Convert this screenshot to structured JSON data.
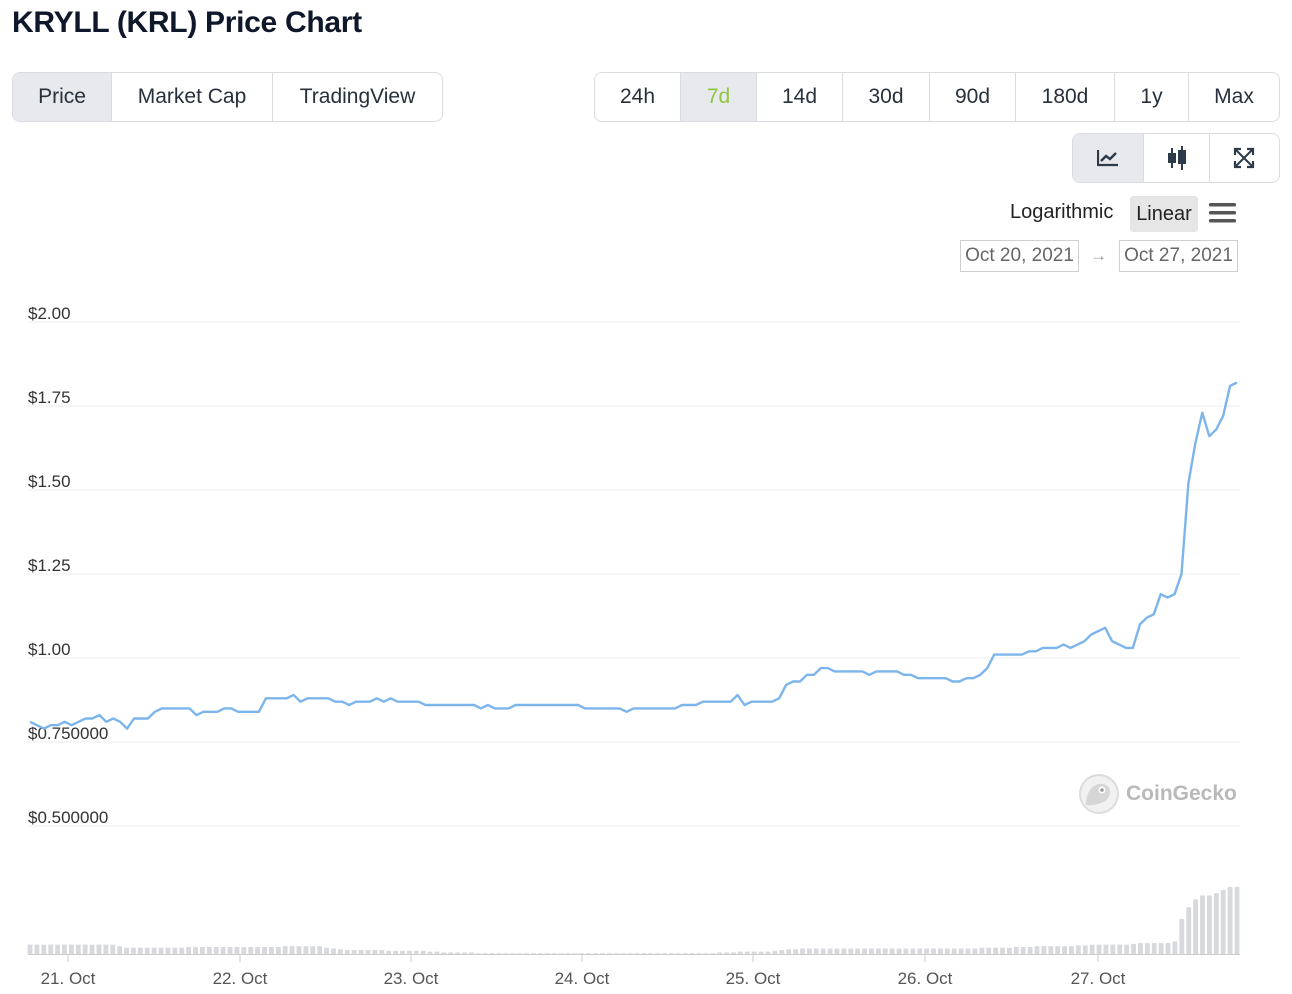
{
  "title": "KRYLL (KRL) Price Chart",
  "tabs": [
    {
      "label": "Price",
      "active": true
    },
    {
      "label": "Market Cap",
      "active": false
    },
    {
      "label": "TradingView",
      "active": false
    }
  ],
  "ranges": [
    {
      "label": "24h",
      "active": false
    },
    {
      "label": "7d",
      "active": true
    },
    {
      "label": "14d",
      "active": false
    },
    {
      "label": "30d",
      "active": false
    },
    {
      "label": "90d",
      "active": false
    },
    {
      "label": "180d",
      "active": false
    },
    {
      "label": "1y",
      "active": false
    },
    {
      "label": "Max",
      "active": false
    }
  ],
  "chart_types": [
    {
      "icon": "line-chart-icon",
      "active": true
    },
    {
      "icon": "candlestick-icon",
      "active": false
    },
    {
      "icon": "expand-icon",
      "active": false
    }
  ],
  "scale": {
    "log_label": "Logarithmic",
    "linear_label": "Linear",
    "selected": "Linear"
  },
  "date_range": {
    "from": "Oct 20, 2021",
    "arrow": "→",
    "to": "Oct 27, 2021"
  },
  "watermark": "CoinGecko",
  "colors": {
    "line": "#7cb5ec",
    "volume": "#d7d9dc",
    "active_range": "#8dc63f",
    "grid": "#ececec"
  },
  "chart_data": {
    "type": "line",
    "series": [
      {
        "values": [
          0.81,
          0.8,
          0.79,
          0.8,
          0.8,
          0.81,
          0.8,
          0.81,
          0.82,
          0.82,
          0.83,
          0.81,
          0.82,
          0.81,
          0.79,
          0.82,
          0.82,
          0.82,
          0.84,
          0.85,
          0.85,
          0.85,
          0.85,
          0.85,
          0.83,
          0.84,
          0.84,
          0.84,
          0.85,
          0.85,
          0.84,
          0.84,
          0.84,
          0.84,
          0.88,
          0.88,
          0.88,
          0.88,
          0.89,
          0.87,
          0.88,
          0.88,
          0.88,
          0.88,
          0.87,
          0.87,
          0.86,
          0.87,
          0.87,
          0.87,
          0.88,
          0.87,
          0.88,
          0.87,
          0.87,
          0.87,
          0.87,
          0.86,
          0.86,
          0.86,
          0.86,
          0.86,
          0.86,
          0.86,
          0.86,
          0.85,
          0.86,
          0.85,
          0.85,
          0.85,
          0.86,
          0.86,
          0.86,
          0.86,
          0.86,
          0.86,
          0.86,
          0.86,
          0.86,
          0.86,
          0.85,
          0.85,
          0.85,
          0.85,
          0.85,
          0.85,
          0.84,
          0.85,
          0.85,
          0.85,
          0.85,
          0.85,
          0.85,
          0.85,
          0.86,
          0.86,
          0.86,
          0.87,
          0.87,
          0.87,
          0.87,
          0.87,
          0.89,
          0.86,
          0.87,
          0.87,
          0.87,
          0.87,
          0.88,
          0.92,
          0.93,
          0.93,
          0.95,
          0.95,
          0.97,
          0.97,
          0.96,
          0.96,
          0.96,
          0.96,
          0.96,
          0.95,
          0.96,
          0.96,
          0.96,
          0.96,
          0.95,
          0.95,
          0.94,
          0.94,
          0.94,
          0.94,
          0.94,
          0.93,
          0.93,
          0.94,
          0.94,
          0.95,
          0.97,
          1.01,
          1.01,
          1.01,
          1.01,
          1.01,
          1.02,
          1.02,
          1.03,
          1.03,
          1.03,
          1.04,
          1.03,
          1.04,
          1.05,
          1.07,
          1.08,
          1.09,
          1.05,
          1.04,
          1.03,
          1.03,
          1.1,
          1.12,
          1.13,
          1.19,
          1.18,
          1.19,
          1.25,
          1.52,
          1.64,
          1.73,
          1.66,
          1.68,
          1.72,
          1.81,
          1.82
        ]
      }
    ],
    "volume": [
      0.12,
      0.12,
      0.12,
      0.12,
      0.12,
      0.12,
      0.12,
      0.12,
      0.12,
      0.12,
      0.12,
      0.12,
      0.12,
      0.1,
      0.08,
      0.08,
      0.08,
      0.08,
      0.08,
      0.08,
      0.08,
      0.08,
      0.08,
      0.09,
      0.09,
      0.09,
      0.09,
      0.09,
      0.09,
      0.09,
      0.09,
      0.09,
      0.09,
      0.09,
      0.09,
      0.09,
      0.09,
      0.1,
      0.1,
      0.1,
      0.1,
      0.1,
      0.1,
      0.08,
      0.07,
      0.06,
      0.05,
      0.05,
      0.05,
      0.05,
      0.05,
      0.05,
      0.04,
      0.04,
      0.04,
      0.04,
      0.04,
      0.04,
      0.03,
      0.03,
      0.02,
      0.02,
      0.02,
      0.02,
      0.02,
      0.01,
      0.01,
      0.01,
      0.01,
      0.01,
      0.01,
      0.01,
      0.01,
      0.01,
      0.01,
      0.01,
      0.01,
      0.01,
      0.01,
      0.01,
      0.01,
      0.01,
      0.01,
      0.01,
      0.01,
      0.01,
      0.01,
      0.01,
      0.01,
      0.01,
      0.01,
      0.01,
      0.01,
      0.01,
      0.01,
      0.01,
      0.01,
      0.01,
      0.01,
      0.01,
      0.02,
      0.02,
      0.02,
      0.03,
      0.03,
      0.03,
      0.03,
      0.03,
      0.04,
      0.05,
      0.06,
      0.06,
      0.07,
      0.07,
      0.07,
      0.07,
      0.07,
      0.07,
      0.07,
      0.07,
      0.07,
      0.07,
      0.07,
      0.07,
      0.07,
      0.07,
      0.07,
      0.07,
      0.07,
      0.07,
      0.07,
      0.07,
      0.07,
      0.07,
      0.07,
      0.07,
      0.07,
      0.07,
      0.08,
      0.08,
      0.08,
      0.08,
      0.08,
      0.09,
      0.09,
      0.09,
      0.1,
      0.1,
      0.1,
      0.1,
      0.1,
      0.1,
      0.11,
      0.11,
      0.12,
      0.12,
      0.12,
      0.12,
      0.12,
      0.12,
      0.13,
      0.14,
      0.14,
      0.14,
      0.14,
      0.14,
      0.16,
      0.45,
      0.6,
      0.7,
      0.75,
      0.75,
      0.78,
      0.82,
      0.86,
      0.86
    ],
    "y_ticks": [
      {
        "value": 2.0,
        "label": "$2.00"
      },
      {
        "value": 1.75,
        "label": "$1.75"
      },
      {
        "value": 1.5,
        "label": "$1.50"
      },
      {
        "value": 1.25,
        "label": "$1.25"
      },
      {
        "value": 1.0,
        "label": "$1.00"
      },
      {
        "value": 0.75,
        "label": "$0.750000"
      },
      {
        "value": 0.5,
        "label": "$0.500000"
      }
    ],
    "x_ticks": [
      "21. Oct",
      "22. Oct",
      "23. Oct",
      "24. Oct",
      "25. Oct",
      "26. Oct",
      "27. Oct"
    ],
    "ylim": [
      0.5,
      2.0
    ],
    "x_range": [
      "Oct 20, 2021",
      "Oct 27, 2021"
    ],
    "grid": true,
    "legend": "none"
  }
}
